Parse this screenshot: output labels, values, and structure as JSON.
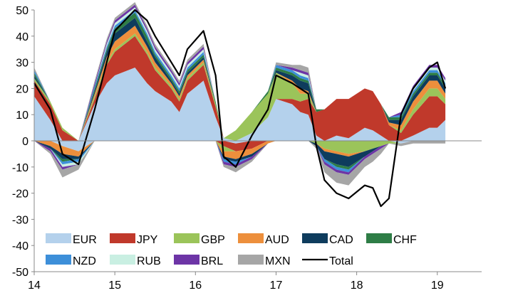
{
  "chart_data": {
    "type": "area",
    "title": "",
    "xlabel": "",
    "ylabel": "",
    "x_tick_labels": [
      "14",
      "15",
      "16",
      "17",
      "18",
      "19"
    ],
    "x_tick_years": [
      2014,
      2015,
      2016,
      2017,
      2018,
      2019
    ],
    "xlim": [
      2014.0,
      2019.55
    ],
    "ylim": [
      -50,
      50
    ],
    "y_ticks": [
      -50,
      -40,
      -30,
      -20,
      -10,
      0,
      10,
      20,
      30,
      40,
      50
    ],
    "grid": false,
    "legend_position": "bottom-left, inside plot",
    "x": [
      2014.0,
      2014.2,
      2014.35,
      2014.55,
      2014.75,
      2014.9,
      2015.0,
      2015.25,
      2015.4,
      2015.5,
      2015.7,
      2015.8,
      2015.9,
      2016.1,
      2016.25,
      2016.35,
      2016.5,
      2016.7,
      2016.9,
      2017.0,
      2017.2,
      2017.3,
      2017.4,
      2017.5,
      2017.6,
      2017.75,
      2017.9,
      2018.1,
      2018.2,
      2018.3,
      2018.4,
      2018.55,
      2018.7,
      2018.9,
      2019.0,
      2019.1
    ],
    "series": [
      {
        "name": "EUR",
        "color": "#b4d1ec",
        "values": [
          17,
          8,
          -2,
          -4,
          14,
          22,
          25,
          28,
          22,
          19,
          15,
          11,
          18,
          23,
          9,
          1,
          -1,
          3,
          9,
          16,
          14,
          11,
          10,
          2,
          0,
          2,
          1,
          5,
          4,
          2,
          0,
          -1,
          2,
          5,
          5,
          8
        ]
      },
      {
        "name": "JPY",
        "color": "#c0392b",
        "values": [
          6,
          6,
          4,
          0,
          2,
          7,
          9,
          12,
          11,
          8,
          5,
          4,
          5,
          6,
          4,
          -2,
          -3,
          -3,
          0,
          0,
          2,
          4,
          6,
          9,
          12,
          14,
          15,
          15,
          15,
          12,
          6,
          3,
          8,
          12,
          12,
          6
        ]
      },
      {
        "name": "GBP",
        "color": "#9bc45a",
        "values": [
          1,
          1,
          1,
          0,
          1,
          1,
          1,
          1,
          1,
          1,
          1,
          1,
          1,
          1,
          1,
          -2,
          4,
          8,
          9,
          10,
          6,
          3,
          2,
          -1,
          -3,
          -4,
          -5,
          -4,
          -3,
          -2,
          -1,
          1,
          2,
          3,
          3,
          2
        ]
      },
      {
        "name": "AUD",
        "color": "#ed8f3c",
        "values": [
          0,
          -2,
          -3,
          -2,
          1,
          2,
          3,
          3,
          2,
          2,
          1,
          1,
          1,
          1,
          0,
          -2,
          -3,
          -2,
          -1,
          0,
          1,
          2,
          1,
          0,
          -1,
          -1,
          -1,
          0,
          0,
          0,
          1,
          2,
          3,
          3,
          3,
          2
        ]
      },
      {
        "name": "CAD",
        "color": "#0e3c5d",
        "values": [
          1,
          -1,
          -2,
          -1,
          1,
          2,
          3,
          3,
          2,
          2,
          1,
          1,
          1,
          1,
          0,
          -1,
          -1,
          -1,
          0,
          1,
          2,
          3,
          3,
          -1,
          -3,
          -4,
          -4,
          -2,
          -1,
          0,
          1,
          2,
          2,
          2,
          2,
          2
        ]
      },
      {
        "name": "CHF",
        "color": "#2e7d46",
        "values": [
          1,
          0,
          -1,
          0,
          1,
          1,
          2,
          2,
          2,
          1,
          1,
          1,
          1,
          1,
          1,
          0,
          0,
          0,
          1,
          1,
          1,
          1,
          1,
          1,
          0,
          -1,
          -1,
          0,
          0,
          0,
          1,
          1,
          1,
          1,
          1,
          1
        ]
      },
      {
        "name": "NZD",
        "color": "#3d8fd9",
        "values": [
          1,
          0,
          -1,
          -1,
          1,
          1,
          1,
          1,
          1,
          1,
          1,
          1,
          1,
          1,
          0,
          -1,
          -1,
          0,
          0,
          1,
          1,
          1,
          1,
          0,
          -1,
          -1,
          -1,
          0,
          0,
          0,
          0,
          1,
          1,
          1,
          1,
          1
        ]
      },
      {
        "name": "RUB",
        "color": "#c9efe2",
        "values": [
          0,
          0,
          -1,
          -1,
          0,
          1,
          1,
          1,
          1,
          1,
          1,
          1,
          1,
          1,
          0,
          0,
          0,
          0,
          0,
          0,
          0,
          1,
          1,
          0,
          0,
          0,
          0,
          0,
          0,
          0,
          0,
          0,
          1,
          1,
          1,
          1
        ]
      },
      {
        "name": "BRL",
        "color": "#6d35a6",
        "values": [
          0,
          -1,
          -1,
          0,
          1,
          1,
          1,
          1,
          1,
          1,
          1,
          1,
          1,
          1,
          0,
          -1,
          -1,
          -1,
          0,
          0,
          1,
          1,
          1,
          0,
          -1,
          -1,
          -1,
          -1,
          -1,
          -1,
          0,
          1,
          1,
          1,
          1,
          1
        ]
      },
      {
        "name": "MXN",
        "color": "#a6a6a6",
        "values": [
          1,
          -1,
          -3,
          -2,
          1,
          1,
          1,
          1,
          1,
          1,
          1,
          1,
          1,
          1,
          0,
          -1,
          -2,
          -1,
          0,
          1,
          1,
          2,
          2,
          -1,
          -3,
          -4,
          -4,
          -3,
          -3,
          -2,
          0,
          -1,
          -1,
          -1,
          -1,
          -1
        ]
      }
    ],
    "total": {
      "name": "Total",
      "color": "#000000",
      "values": [
        22,
        12,
        -5,
        -9,
        12,
        30,
        42,
        50,
        46,
        40,
        30,
        25,
        35,
        42,
        25,
        -6,
        -10,
        2,
        12,
        25,
        22,
        20,
        18,
        -2,
        -15,
        -20,
        -22,
        -17,
        -18,
        -25,
        -22,
        10,
        20,
        28,
        30,
        20
      ]
    }
  }
}
